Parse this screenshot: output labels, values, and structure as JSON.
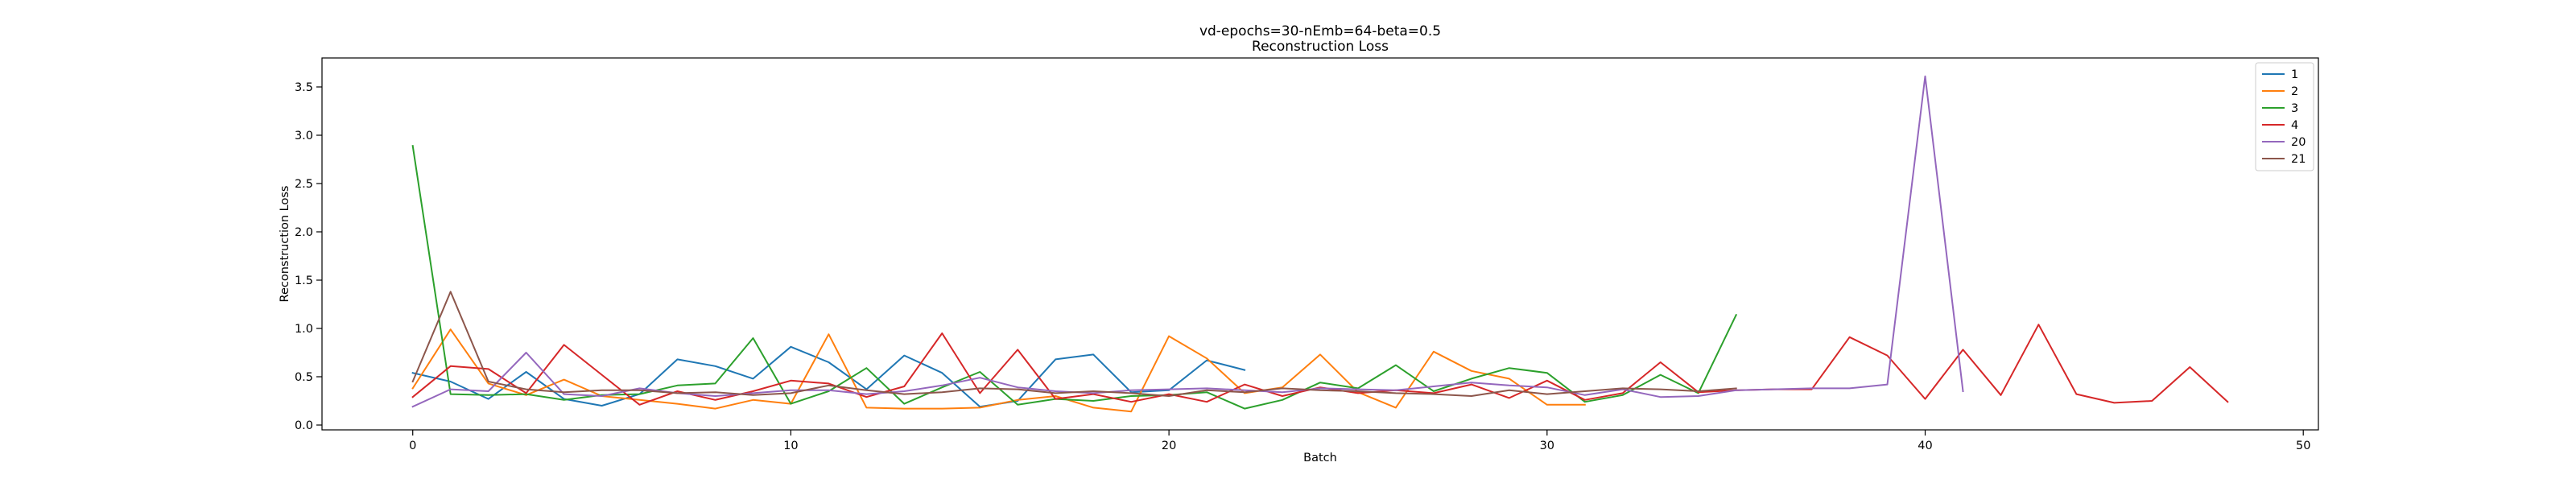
{
  "chart_data": {
    "type": "line",
    "title": "vd-epochs=30-nEmb=64-beta=0.5",
    "subtitle": "Reconstruction Loss",
    "xlabel": "Batch",
    "ylabel": "Reconstruction Loss",
    "xlim": [
      -2.4,
      50.4
    ],
    "ylim": [
      -0.05,
      3.8
    ],
    "xticks": [
      0,
      10,
      20,
      30,
      40,
      50
    ],
    "yticks": [
      0.0,
      0.5,
      1.0,
      1.5,
      2.0,
      2.5,
      3.0,
      3.5
    ],
    "xtick_labels": [
      "0",
      "10",
      "20",
      "30",
      "40",
      "50"
    ],
    "ytick_labels": [
      "0.0",
      "0.5",
      "1.0",
      "1.5",
      "2.0",
      "2.5",
      "3.0",
      "3.5"
    ],
    "grid": false,
    "legend_position": "top-right",
    "series": [
      {
        "name": "1",
        "color": "#1f77b4",
        "values": [
          0.54,
          0.45,
          0.27,
          0.55,
          0.27,
          0.2,
          0.32,
          0.68,
          0.61,
          0.48,
          0.81,
          0.65,
          0.37,
          0.72,
          0.54,
          0.19,
          0.25,
          0.68,
          0.73,
          0.34,
          0.36,
          0.67,
          0.57
        ]
      },
      {
        "name": "2",
        "color": "#ff7f0e",
        "values": [
          0.38,
          0.99,
          0.43,
          0.31,
          0.47,
          0.3,
          0.26,
          0.22,
          0.17,
          0.26,
          0.22,
          0.94,
          0.18,
          0.17,
          0.17,
          0.18,
          0.26,
          0.3,
          0.18,
          0.14,
          0.92,
          0.69,
          0.33,
          0.39,
          0.73,
          0.34,
          0.18,
          0.76,
          0.56,
          0.48,
          0.21,
          0.21
        ]
      },
      {
        "name": "3",
        "color": "#2ca02c",
        "values": [
          2.89,
          0.32,
          0.31,
          0.32,
          0.26,
          0.31,
          0.32,
          0.41,
          0.43,
          0.9,
          0.22,
          0.35,
          0.59,
          0.22,
          0.39,
          0.55,
          0.21,
          0.27,
          0.25,
          0.3,
          0.31,
          0.34,
          0.17,
          0.26,
          0.44,
          0.38,
          0.62,
          0.35,
          0.48,
          0.59,
          0.54,
          0.24,
          0.31,
          0.52,
          0.33,
          1.14
        ]
      },
      {
        "name": "4",
        "color": "#d62728",
        "values": [
          0.29,
          0.61,
          0.58,
          0.33,
          0.83,
          0.52,
          0.21,
          0.35,
          0.26,
          0.35,
          0.46,
          0.43,
          0.29,
          0.4,
          0.95,
          0.33,
          0.78,
          0.27,
          0.32,
          0.24,
          0.32,
          0.24,
          0.42,
          0.3,
          0.39,
          0.33,
          0.36,
          0.33,
          0.42,
          0.28,
          0.46,
          0.26,
          0.33,
          0.65,
          0.34,
          0.36,
          0.37,
          0.37,
          0.91,
          0.72,
          0.27,
          0.78,
          0.31,
          1.04,
          0.32,
          0.23,
          0.25,
          0.6,
          0.24
        ]
      },
      {
        "name": "20",
        "color": "#9467bd",
        "values": [
          0.19,
          0.37,
          0.35,
          0.75,
          0.32,
          0.3,
          0.38,
          0.33,
          0.3,
          0.33,
          0.36,
          0.36,
          0.32,
          0.35,
          0.41,
          0.49,
          0.39,
          0.35,
          0.33,
          0.36,
          0.37,
          0.38,
          0.36,
          0.34,
          0.38,
          0.37,
          0.36,
          0.4,
          0.44,
          0.41,
          0.39,
          0.31,
          0.37,
          0.29,
          0.3,
          0.36,
          0.37,
          0.38,
          0.38,
          0.42,
          3.61,
          0.35
        ]
      },
      {
        "name": "21",
        "color": "#8c564b",
        "values": [
          0.45,
          1.38,
          0.45,
          0.37,
          0.34,
          0.36,
          0.36,
          0.33,
          0.34,
          0.31,
          0.33,
          0.41,
          0.36,
          0.32,
          0.34,
          0.38,
          0.37,
          0.33,
          0.35,
          0.33,
          0.3,
          0.36,
          0.34,
          0.38,
          0.36,
          0.35,
          0.33,
          0.32,
          0.3,
          0.36,
          0.32,
          0.35,
          0.38,
          0.37,
          0.35,
          0.38
        ]
      }
    ]
  }
}
